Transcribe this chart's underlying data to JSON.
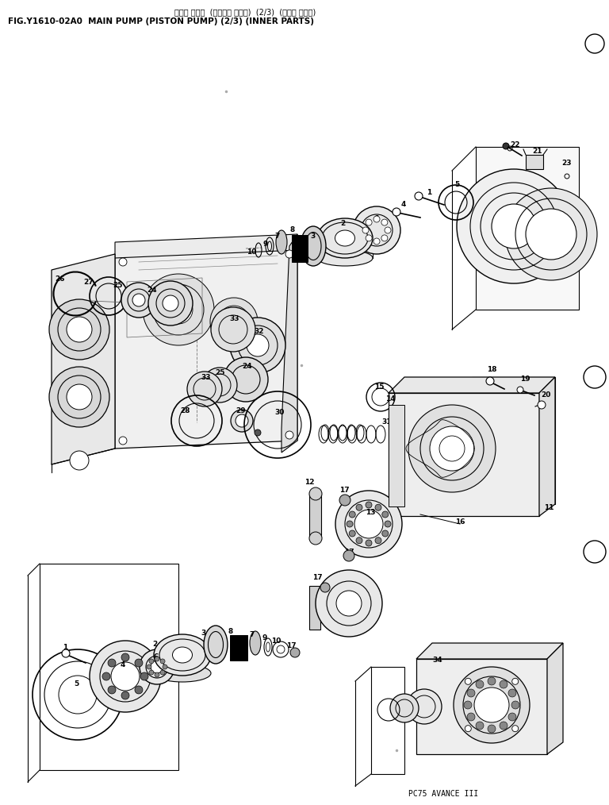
{
  "title_jp": "メイン ポンプ  (ピストン ポンプ)  (2/3)  (インナ パーツ)",
  "title_en": "FIG.Y1610-02A0  MAIN PUMP (PISTON PUMP) (2/3) (INNER PARTS)",
  "footer": "PC75 AVANCE III",
  "bg_color": "#ffffff",
  "line_color": "#000000"
}
